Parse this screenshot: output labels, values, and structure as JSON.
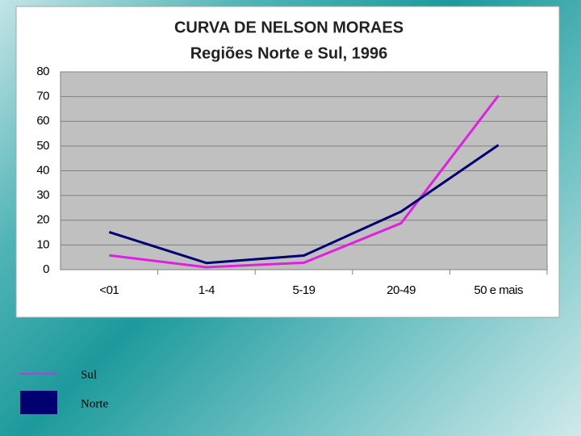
{
  "chart_data": {
    "type": "line",
    "title": "CURVA DE NELSON MORAES",
    "subtitle": "Regiões Norte e Sul, 1996",
    "categories": [
      "<01",
      "1-4",
      "5-19",
      "20-49",
      "50 e mais"
    ],
    "series": [
      {
        "name": "Sul",
        "color": "#e020e0",
        "values": [
          5.8,
          1,
          2.8,
          18.8,
          70.4
        ]
      },
      {
        "name": "Norte",
        "color": "#000070",
        "values": [
          15.2,
          2.7,
          5.7,
          23.5,
          50.4
        ]
      }
    ],
    "ylim": [
      0,
      80
    ],
    "yticks": [
      0,
      10,
      20,
      30,
      40,
      50,
      60,
      70,
      80
    ],
    "grid": true
  }
}
